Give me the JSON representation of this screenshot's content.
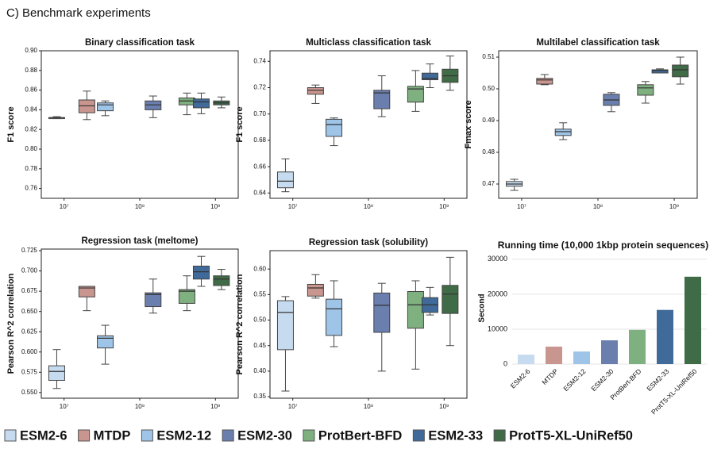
{
  "header": {
    "title": "C) Benchmark experiments"
  },
  "legend": [
    {
      "name": "ESM2-6",
      "color": "#c6dbef"
    },
    {
      "name": "MTDP",
      "color": "#c9958f"
    },
    {
      "name": "ESM2-12",
      "color": "#9ec5e8"
    },
    {
      "name": "ESM2-30",
      "color": "#6a7fae"
    },
    {
      "name": "ProtBert-BFD",
      "color": "#7fb07f"
    },
    {
      "name": "ESM2-33",
      "color": "#3f6a99"
    },
    {
      "name": "ProtT5-XL-UniRef50",
      "color": "#3f6b47"
    }
  ],
  "chart_data": [
    {
      "type": "box",
      "title": "Binary classification task",
      "ylabel": "F1 score",
      "xscale": "log",
      "x": [
        8000000,
        20000000,
        35000000,
        150000000,
        420000000,
        650000000,
        1200000000
      ],
      "xlim": [
        5000000,
        2000000000
      ],
      "xticks": [
        {
          "value": 10000000,
          "label": "10⁷"
        },
        {
          "value": 100000000,
          "label": "10⁸"
        },
        {
          "value": 1000000000,
          "label": "10⁹"
        }
      ],
      "ylim": [
        0.75,
        0.9
      ],
      "yticks": [
        0.76,
        0.78,
        {
          "value": 0.8,
          "label": "0.80"
        },
        0.82,
        0.84,
        0.86,
        0.88,
        {
          "value": 0.9,
          "label": "0.90"
        }
      ],
      "boxes": [
        {
          "min": 0.831,
          "q1": 0.831,
          "median": 0.832,
          "q3": 0.832,
          "max": 0.833
        },
        {
          "min": 0.83,
          "q1": 0.837,
          "median": 0.844,
          "q3": 0.85,
          "max": 0.859
        },
        {
          "min": 0.834,
          "q1": 0.839,
          "median": 0.845,
          "q3": 0.847,
          "max": 0.849
        },
        {
          "min": 0.832,
          "q1": 0.84,
          "median": 0.845,
          "q3": 0.849,
          "max": 0.854
        },
        {
          "min": 0.835,
          "q1": 0.845,
          "median": 0.849,
          "q3": 0.852,
          "max": 0.857
        },
        {
          "min": 0.836,
          "q1": 0.842,
          "median": 0.848,
          "q3": 0.851,
          "max": 0.857
        },
        {
          "min": 0.842,
          "q1": 0.845,
          "median": 0.847,
          "q3": 0.849,
          "max": 0.853
        }
      ]
    },
    {
      "type": "box",
      "title": "Multiclass classification task",
      "ylabel": "F1 score",
      "xscale": "log",
      "x": [
        8000000,
        20000000,
        35000000,
        150000000,
        420000000,
        650000000,
        1200000000
      ],
      "xlim": [
        5000000,
        2000000000
      ],
      "xticks": [
        {
          "value": 10000000,
          "label": "10⁷"
        },
        {
          "value": 100000000,
          "label": "10⁸"
        },
        {
          "value": 1000000000,
          "label": "10⁹"
        }
      ],
      "ylim": [
        0.636,
        0.748
      ],
      "yticks": [
        0.64,
        0.66,
        0.68,
        {
          "value": 0.7,
          "label": "0.70"
        },
        0.72,
        0.74
      ],
      "boxes": [
        {
          "min": 0.641,
          "q1": 0.644,
          "median": 0.649,
          "q3": 0.656,
          "max": 0.666
        },
        {
          "min": 0.708,
          "q1": 0.715,
          "median": 0.718,
          "q3": 0.72,
          "max": 0.722
        },
        {
          "min": 0.676,
          "q1": 0.683,
          "median": 0.692,
          "q3": 0.696,
          "max": 0.697
        },
        {
          "min": 0.698,
          "q1": 0.704,
          "median": 0.716,
          "q3": 0.718,
          "max": 0.729
        },
        {
          "min": 0.702,
          "q1": 0.709,
          "median": 0.719,
          "q3": 0.721,
          "max": 0.733
        },
        {
          "min": 0.72,
          "q1": 0.726,
          "median": 0.727,
          "q3": 0.731,
          "max": 0.738
        },
        {
          "min": 0.718,
          "q1": 0.724,
          "median": 0.729,
          "q3": 0.734,
          "max": 0.744
        }
      ]
    },
    {
      "type": "box",
      "title": "Multilabel classification task",
      "ylabel": "Fmax score",
      "xscale": "log",
      "x": [
        8000000,
        20000000,
        35000000,
        150000000,
        420000000,
        650000000,
        1200000000
      ],
      "xlim": [
        5000000,
        2000000000
      ],
      "xticks": [
        {
          "value": 10000000,
          "label": "10⁷"
        },
        {
          "value": 100000000,
          "label": "10⁸"
        },
        {
          "value": 1000000000,
          "label": "10⁹"
        }
      ],
      "ylim": [
        0.4655,
        0.512
      ],
      "yticks": [
        0.47,
        0.48,
        0.49,
        {
          "value": 0.5,
          "label": "0.50"
        },
        0.51
      ],
      "boxes": [
        {
          "min": 0.468,
          "q1": 0.4693,
          "median": 0.47,
          "q3": 0.4708,
          "max": 0.4715
        },
        {
          "min": 0.5013,
          "q1": 0.5015,
          "median": 0.5028,
          "q3": 0.5033,
          "max": 0.5045
        },
        {
          "min": 0.484,
          "q1": 0.4853,
          "median": 0.4865,
          "q3": 0.4873,
          "max": 0.4893
        },
        {
          "min": 0.4928,
          "q1": 0.4948,
          "median": 0.4965,
          "q3": 0.4983,
          "max": 0.4988
        },
        {
          "min": 0.4955,
          "q1": 0.498,
          "median": 0.5003,
          "q3": 0.5013,
          "max": 0.5023
        },
        {
          "min": 0.505,
          "q1": 0.505,
          "median": 0.5058,
          "q3": 0.506,
          "max": 0.5063
        },
        {
          "min": 0.5015,
          "q1": 0.5038,
          "median": 0.506,
          "q3": 0.5075,
          "max": 0.51
        }
      ]
    },
    {
      "type": "box",
      "title": "Regression task (meltome)",
      "ylabel": "Pearson R^2 correlation",
      "xscale": "log",
      "x": [
        8000000,
        20000000,
        35000000,
        150000000,
        420000000,
        650000000,
        1200000000
      ],
      "xlim": [
        5000000,
        2000000000
      ],
      "xticks": [
        {
          "value": 10000000,
          "label": "10⁷"
        },
        {
          "value": 100000000,
          "label": "10⁸"
        },
        {
          "value": 1000000000,
          "label": "10⁹"
        }
      ],
      "ylim": [
        0.543,
        0.727
      ],
      "yticks": [
        {
          "value": 0.55,
          "label": "0.550"
        },
        0.575,
        {
          "value": 0.6,
          "label": "0.600"
        },
        0.625,
        {
          "value": 0.65,
          "label": "0.650"
        },
        0.675,
        {
          "value": 0.7,
          "label": "0.700"
        },
        0.725
      ],
      "boxes": [
        {
          "min": 0.555,
          "q1": 0.565,
          "median": 0.576,
          "q3": 0.583,
          "max": 0.603
        },
        {
          "min": 0.651,
          "q1": 0.668,
          "median": 0.679,
          "q3": 0.681,
          "max": 0.681
        },
        {
          "min": 0.585,
          "q1": 0.605,
          "median": 0.617,
          "q3": 0.62,
          "max": 0.633
        },
        {
          "min": 0.648,
          "q1": 0.656,
          "median": 0.671,
          "q3": 0.673,
          "max": 0.69
        },
        {
          "min": 0.651,
          "q1": 0.66,
          "median": 0.675,
          "q3": 0.677,
          "max": 0.694
        },
        {
          "min": 0.681,
          "q1": 0.69,
          "median": 0.699,
          "q3": 0.706,
          "max": 0.718
        },
        {
          "min": 0.677,
          "q1": 0.682,
          "median": 0.69,
          "q3": 0.694,
          "max": 0.702
        }
      ]
    },
    {
      "type": "box",
      "title": "Regression task (solubility)",
      "ylabel": "Pearson R^2 correlation",
      "xscale": "log",
      "x": [
        8000000,
        20000000,
        35000000,
        150000000,
        420000000,
        650000000,
        1200000000
      ],
      "xlim": [
        5000000,
        2000000000
      ],
      "xticks": [
        {
          "value": 10000000,
          "label": "10⁷"
        },
        {
          "value": 100000000,
          "label": "10⁸"
        },
        {
          "value": 1000000000,
          "label": "10⁹"
        }
      ],
      "ylim": [
        0.347,
        0.636
      ],
      "yticks": [
        0.35,
        {
          "value": 0.4,
          "label": "0.40"
        },
        0.45,
        {
          "value": 0.5,
          "label": "0.50"
        },
        0.55,
        {
          "value": 0.6,
          "label": "0.60"
        }
      ],
      "boxes": [
        {
          "min": 0.361,
          "q1": 0.442,
          "median": 0.515,
          "q3": 0.538,
          "max": 0.546
        },
        {
          "min": 0.543,
          "q1": 0.547,
          "median": 0.563,
          "q3": 0.57,
          "max": 0.589
        },
        {
          "min": 0.448,
          "q1": 0.47,
          "median": 0.522,
          "q3": 0.541,
          "max": 0.577
        },
        {
          "min": 0.4,
          "q1": 0.476,
          "median": 0.529,
          "q3": 0.553,
          "max": 0.572
        },
        {
          "min": 0.404,
          "q1": 0.484,
          "median": 0.53,
          "q3": 0.556,
          "max": 0.577
        },
        {
          "min": 0.51,
          "q1": 0.515,
          "median": 0.53,
          "q3": 0.544,
          "max": 0.564
        },
        {
          "min": 0.45,
          "q1": 0.513,
          "median": 0.551,
          "q3": 0.568,
          "max": 0.623
        }
      ]
    },
    {
      "type": "bar",
      "title": "Running time (10,000 1kbp protein sequences)",
      "ylabel": "Second",
      "categories": [
        "ESM2-6",
        "MTDP",
        "ESM2-12",
        "ESM2-30",
        "ProtBert-BFD",
        "ESM2-33",
        "ProtT5-XL-UniRef50"
      ],
      "values": [
        2700,
        5000,
        3600,
        6800,
        9800,
        15500,
        25000
      ],
      "ylim": [
        0,
        32000
      ],
      "yticks": [
        0,
        10000,
        20000,
        30000
      ],
      "grid": true
    }
  ]
}
